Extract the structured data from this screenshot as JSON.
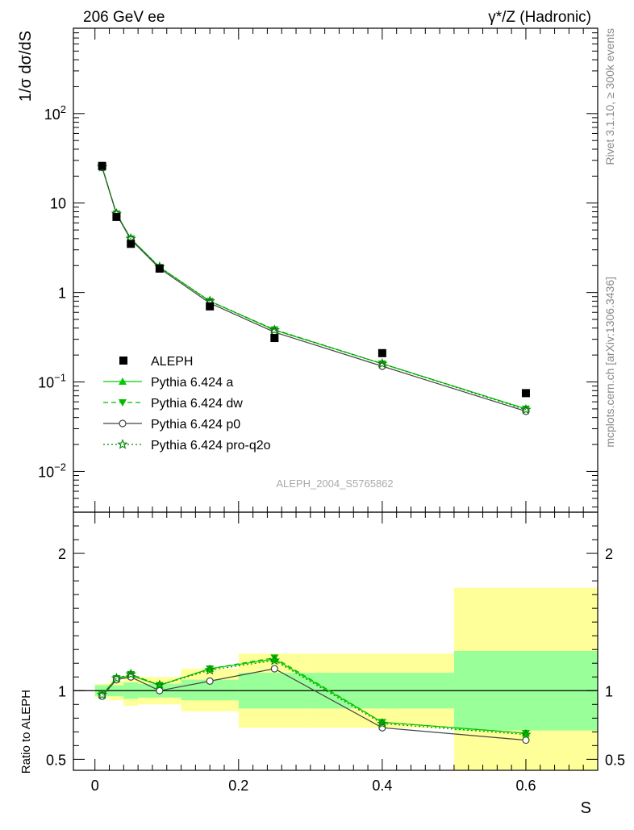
{
  "header": {
    "left": "206 GeV ee",
    "right": "γ*/Z (Hadronic)"
  },
  "side_text": {
    "rivet": "Rivet 3.1.10, ≥ 300k events",
    "mcplots": "mcplots.cern.ch [arXiv:1306.3436]"
  },
  "watermark": "ALEPH_2004_S5765862",
  "chart_data": [
    {
      "type": "line",
      "panel": "main",
      "ylabel": "1/σ  dσ/dS",
      "yscale": "log",
      "ylim": [
        0.0035,
        900
      ],
      "xlim": [
        -0.03,
        0.7
      ],
      "ytick_labels": [
        {
          "value": 0.01,
          "base": "10",
          "exp": "−2"
        },
        {
          "value": 0.1,
          "base": "10",
          "exp": "−1"
        },
        {
          "value": 1,
          "base": "1",
          "exp": ""
        },
        {
          "value": 10,
          "base": "10",
          "exp": ""
        },
        {
          "value": 100,
          "base": "10",
          "exp": "2"
        }
      ],
      "x": [
        0.01,
        0.03,
        0.05,
        0.09,
        0.16,
        0.25,
        0.4,
        0.6
      ],
      "data": {
        "name": "ALEPH",
        "values": [
          26.0,
          7.0,
          3.5,
          1.85,
          0.7,
          0.31,
          0.21,
          0.075
        ]
      },
      "series": [
        {
          "name": "Pythia 6.424 a",
          "color": "#00cc00",
          "dash": "",
          "marker": "triangle-up",
          "values": [
            25.2,
            7.6,
            4.0,
            1.92,
            0.8,
            0.38,
            0.16,
            0.05
          ]
        },
        {
          "name": "Pythia 6.424 dw",
          "color": "#00bb00",
          "dash": "6,4",
          "marker": "triangle-down",
          "values": [
            25.5,
            7.6,
            4.0,
            1.92,
            0.8,
            0.385,
            0.16,
            0.05
          ]
        },
        {
          "name": "Pythia 6.424 p0",
          "color": "#444444",
          "dash": "",
          "marker": "circle-open",
          "values": [
            25.0,
            7.5,
            3.9,
            1.86,
            0.76,
            0.36,
            0.15,
            0.047
          ]
        },
        {
          "name": "Pythia 6.424 pro-q2o",
          "color": "#008800",
          "dash": "2,3",
          "marker": "star-open",
          "values": [
            25.3,
            7.6,
            4.0,
            1.93,
            0.8,
            0.38,
            0.16,
            0.049
          ]
        }
      ]
    },
    {
      "type": "line",
      "panel": "ratio",
      "ylabel": "Ratio to ALEPH",
      "xlabel": "S",
      "ylim": [
        0.42,
        2.3
      ],
      "yticks": [
        0.5,
        1,
        2
      ],
      "ytick_labels": [
        "0.5",
        "1",
        "2"
      ],
      "xticks": [
        0,
        0.2,
        0.4,
        0.6
      ],
      "xtick_labels": [
        "0",
        "0.2",
        "0.4",
        "0.6"
      ],
      "x": [
        0.01,
        0.03,
        0.05,
        0.09,
        0.16,
        0.25,
        0.4,
        0.6
      ],
      "bins": [
        {
          "lo": 0.0,
          "hi": 0.02,
          "inner": [
            0.96,
            1.04
          ],
          "outer": [
            0.95,
            1.05
          ]
        },
        {
          "lo": 0.02,
          "hi": 0.04,
          "inner": [
            0.96,
            1.04
          ],
          "outer": [
            0.93,
            1.07
          ]
        },
        {
          "lo": 0.04,
          "hi": 0.06,
          "inner": [
            0.94,
            1.06
          ],
          "outer": [
            0.89,
            1.11
          ]
        },
        {
          "lo": 0.06,
          "hi": 0.12,
          "inner": [
            0.95,
            1.05
          ],
          "outer": [
            0.9,
            1.1
          ]
        },
        {
          "lo": 0.12,
          "hi": 0.2,
          "inner": [
            0.93,
            1.08
          ],
          "outer": [
            0.85,
            1.16
          ]
        },
        {
          "lo": 0.2,
          "hi": 0.3,
          "inner": [
            0.87,
            1.13
          ],
          "outer": [
            0.73,
            1.27
          ]
        },
        {
          "lo": 0.3,
          "hi": 0.5,
          "inner": [
            0.87,
            1.13
          ],
          "outer": [
            0.73,
            1.27
          ]
        },
        {
          "lo": 0.5,
          "hi": 0.7,
          "inner": [
            0.71,
            1.29
          ],
          "outer": [
            0.42,
            1.75
          ]
        }
      ],
      "series": [
        {
          "name": "Pythia 6.424 a",
          "values": [
            0.97,
            1.09,
            1.11,
            1.04,
            1.16,
            1.23,
            0.77,
            0.69
          ]
        },
        {
          "name": "Pythia 6.424 dw",
          "values": [
            0.97,
            1.09,
            1.12,
            1.04,
            1.16,
            1.24,
            0.77,
            0.69
          ]
        },
        {
          "name": "Pythia 6.424 p0",
          "values": [
            0.96,
            1.08,
            1.1,
            1.0,
            1.07,
            1.16,
            0.73,
            0.64
          ]
        },
        {
          "name": "Pythia 6.424 pro-q2o",
          "values": [
            0.97,
            1.09,
            1.12,
            1.04,
            1.15,
            1.22,
            0.76,
            0.68
          ]
        }
      ]
    }
  ]
}
